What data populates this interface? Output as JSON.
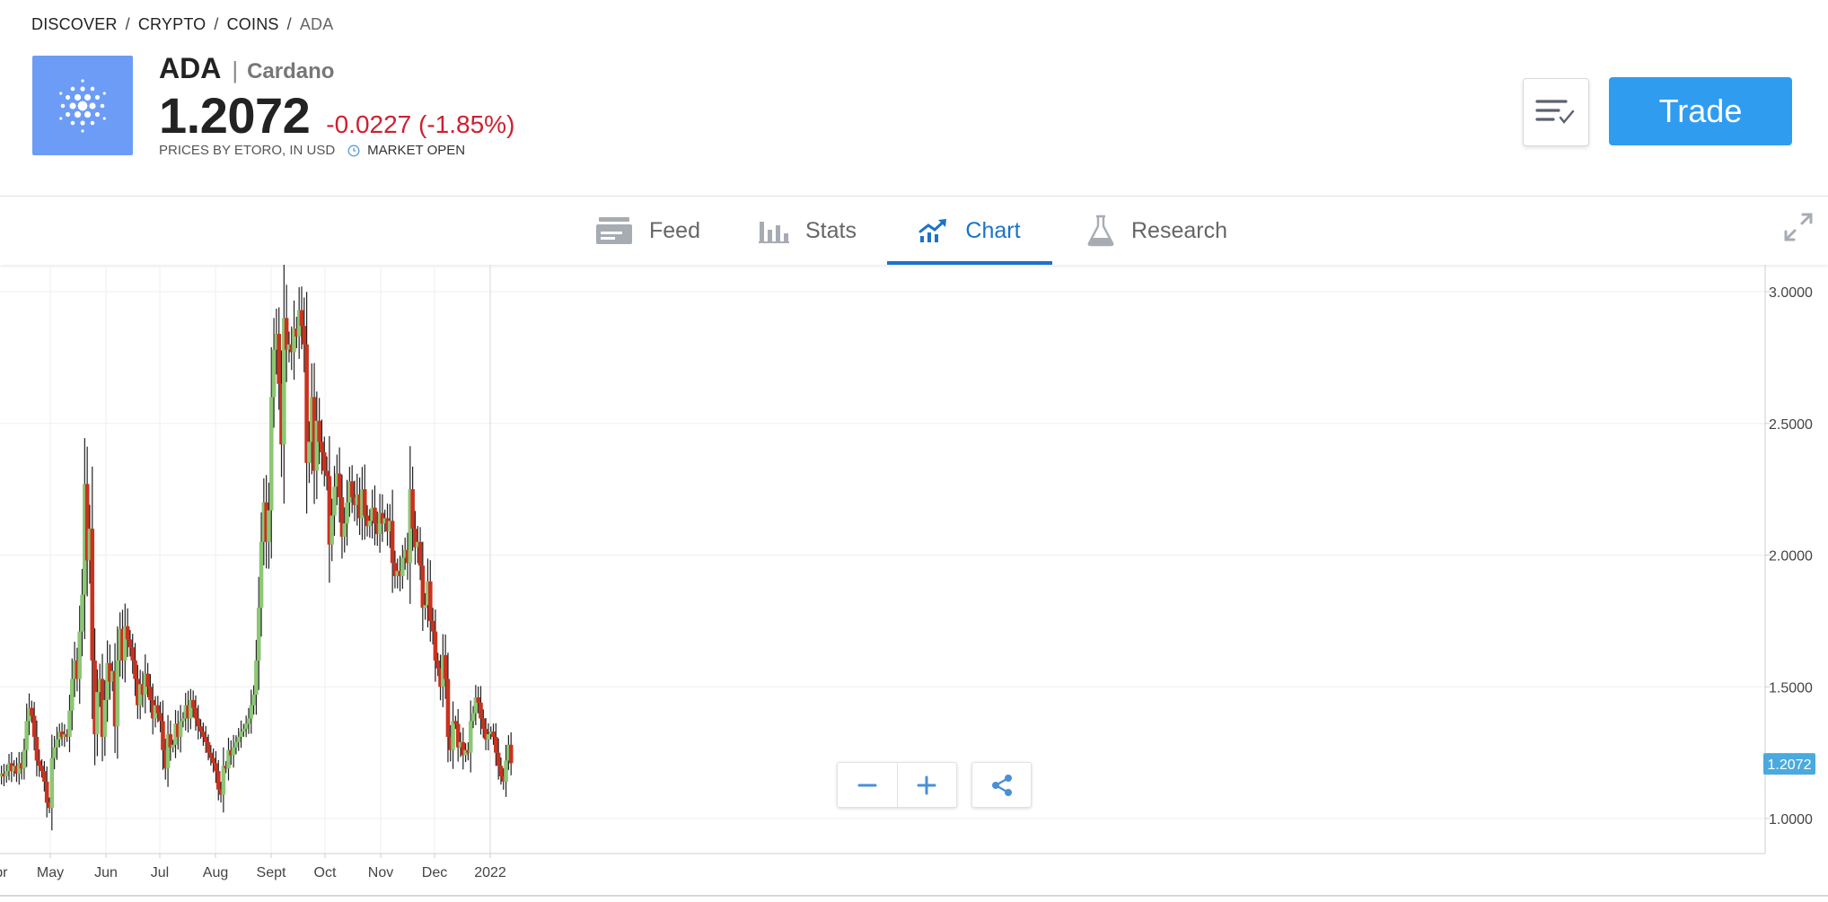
{
  "breadcrumb": {
    "items": [
      "DISCOVER",
      "CRYPTO",
      "COINS"
    ],
    "current": "ADA",
    "separator": "/"
  },
  "instrument": {
    "symbol": "ADA",
    "separator": "|",
    "name": "Cardano",
    "price": "1.2072",
    "change": "-0.0227 (-1.85%)",
    "source": "PRICES BY ETORO, IN USD",
    "market_status": "MARKET OPEN",
    "logo_icon": "cardano-logo-icon",
    "logo_color": "#6c9cf5"
  },
  "actions": {
    "watchlist_icon": "watchlist-check-icon",
    "trade_label": "Trade"
  },
  "tabs": [
    {
      "label": "Feed",
      "icon": "feed-icon",
      "active": false
    },
    {
      "label": "Stats",
      "icon": "stats-bar-icon",
      "active": false
    },
    {
      "label": "Chart",
      "icon": "chart-trend-icon",
      "active": true
    },
    {
      "label": "Research",
      "icon": "flask-icon",
      "active": false
    }
  ],
  "colors": {
    "up": "#8cc775",
    "down": "#c9321f",
    "accent": "#2f9cf0",
    "tab_active": "#1a73c9",
    "change_negative": "#cf1f2f",
    "price_tag": "#4aaadf"
  },
  "chart_controls": {
    "zoom_out_icon": "minus-icon",
    "zoom_in_icon": "plus-icon",
    "share_icon": "share-icon"
  },
  "chart_data": {
    "type": "candlestick",
    "ylim": [
      0.87,
      3.1
    ],
    "y_ticks": [
      "3.0000",
      "2.5000",
      "2.0000",
      "1.5000",
      "1.0000"
    ],
    "y_tick_values": [
      3.0,
      2.5,
      2.0,
      1.5,
      1.0
    ],
    "x_ticks": [
      "Apr",
      "May",
      "Jun",
      "Jul",
      "Aug",
      "Sept",
      "Oct",
      "Nov",
      "Dec",
      "2022"
    ],
    "x_tick_days": [
      0,
      30,
      61,
      91,
      122,
      153,
      183,
      214,
      244,
      275
    ],
    "last_price": "1.2072",
    "last_price_value": 1.2072,
    "date_range": [
      "2021-04-01",
      "2022-01-14"
    ],
    "grid": true,
    "close_values": [
      1.17,
      1.16,
      1.17,
      1.16,
      1.18,
      1.21,
      1.18,
      1.2,
      1.17,
      1.21,
      1.19,
      1.26,
      1.37,
      1.42,
      1.39,
      1.31,
      1.22,
      1.2,
      1.18,
      1.14,
      1.06,
      1.04,
      1.23,
      1.27,
      1.3,
      1.33,
      1.31,
      1.32,
      1.31,
      1.41,
      1.53,
      1.6,
      1.53,
      1.71,
      1.85,
      2.27,
      1.98,
      2.1,
      1.6,
      1.32,
      1.48,
      1.53,
      1.31,
      1.45,
      1.59,
      1.52,
      1.56,
      1.35,
      1.6,
      1.72,
      1.6,
      1.73,
      1.68,
      1.65,
      1.6,
      1.53,
      1.43,
      1.51,
      1.47,
      1.55,
      1.5,
      1.45,
      1.38,
      1.43,
      1.4,
      1.37,
      1.26,
      1.19,
      1.32,
      1.27,
      1.28,
      1.36,
      1.31,
      1.37,
      1.38,
      1.43,
      1.38,
      1.45,
      1.42,
      1.38,
      1.35,
      1.33,
      1.31,
      1.29,
      1.25,
      1.23,
      1.21,
      1.18,
      1.11,
      1.09,
      1.2,
      1.19,
      1.26,
      1.24,
      1.27,
      1.29,
      1.31,
      1.33,
      1.34,
      1.36,
      1.38,
      1.43,
      1.47,
      1.6,
      1.8,
      2.05,
      2.2,
      2.05,
      2.17,
      2.6,
      2.78,
      2.84,
      2.65,
      2.42,
      2.9,
      2.78,
      2.8,
      2.77,
      2.86,
      2.83,
      2.93,
      2.87,
      2.8,
      2.35,
      2.43,
      2.6,
      2.32,
      2.51,
      2.43,
      2.39,
      2.32,
      2.3,
      2.04,
      2.15,
      2.26,
      2.31,
      2.22,
      2.07,
      2.12,
      2.2,
      2.28,
      2.22,
      2.19,
      2.23,
      2.14,
      2.25,
      2.15,
      2.11,
      2.13,
      2.18,
      2.12,
      2.08,
      2.16,
      2.12,
      2.14,
      2.09,
      2.13,
      1.97,
      1.92,
      1.94,
      1.92,
      1.99,
      2.02,
      1.97,
      2.25,
      2.1,
      2.03,
      2.05,
      1.96,
      1.8,
      1.81,
      1.9,
      1.75,
      1.71,
      1.6,
      1.57,
      1.5,
      1.62,
      1.53,
      1.31,
      1.26,
      1.37,
      1.36,
      1.27,
      1.29,
      1.24,
      1.26,
      1.25,
      1.37,
      1.4,
      1.46,
      1.44,
      1.38,
      1.34,
      1.3,
      1.32,
      1.33,
      1.31,
      1.25,
      1.2,
      1.16,
      1.14,
      1.22,
      1.28,
      1.21
    ]
  }
}
